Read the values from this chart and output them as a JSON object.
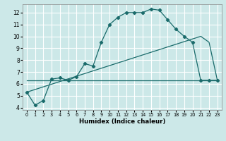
{
  "xlabel": "Humidex (Indice chaleur)",
  "xlim": [
    -0.5,
    23.5
  ],
  "ylim": [
    3.8,
    12.7
  ],
  "yticks": [
    4,
    5,
    6,
    7,
    8,
    9,
    10,
    11,
    12
  ],
  "xticks": [
    0,
    1,
    2,
    3,
    4,
    5,
    6,
    7,
    8,
    9,
    10,
    11,
    12,
    13,
    14,
    15,
    16,
    17,
    18,
    19,
    20,
    21,
    22,
    23
  ],
  "bg_color": "#cce8e8",
  "line_color": "#1a6b6b",
  "grid_color": "#ffffff",
  "line1_x": [
    0,
    1,
    2,
    3,
    4,
    5,
    6,
    7,
    8,
    9,
    10,
    11,
    12,
    13,
    14,
    15,
    16,
    17,
    18,
    19,
    20,
    21,
    22,
    23
  ],
  "line1_y": [
    5.3,
    4.2,
    4.6,
    6.4,
    6.5,
    6.3,
    6.6,
    7.7,
    7.5,
    9.5,
    11.0,
    11.6,
    12.0,
    12.0,
    12.0,
    12.3,
    12.2,
    11.4,
    10.6,
    10.0,
    9.5,
    6.3,
    6.3,
    6.3
  ],
  "line2_x": [
    0,
    21,
    22,
    23
  ],
  "line2_y": [
    5.3,
    10.0,
    9.5,
    6.3
  ],
  "line3_x": [
    0,
    21,
    22,
    23
  ],
  "line3_y": [
    6.3,
    6.3,
    6.3,
    6.3
  ]
}
